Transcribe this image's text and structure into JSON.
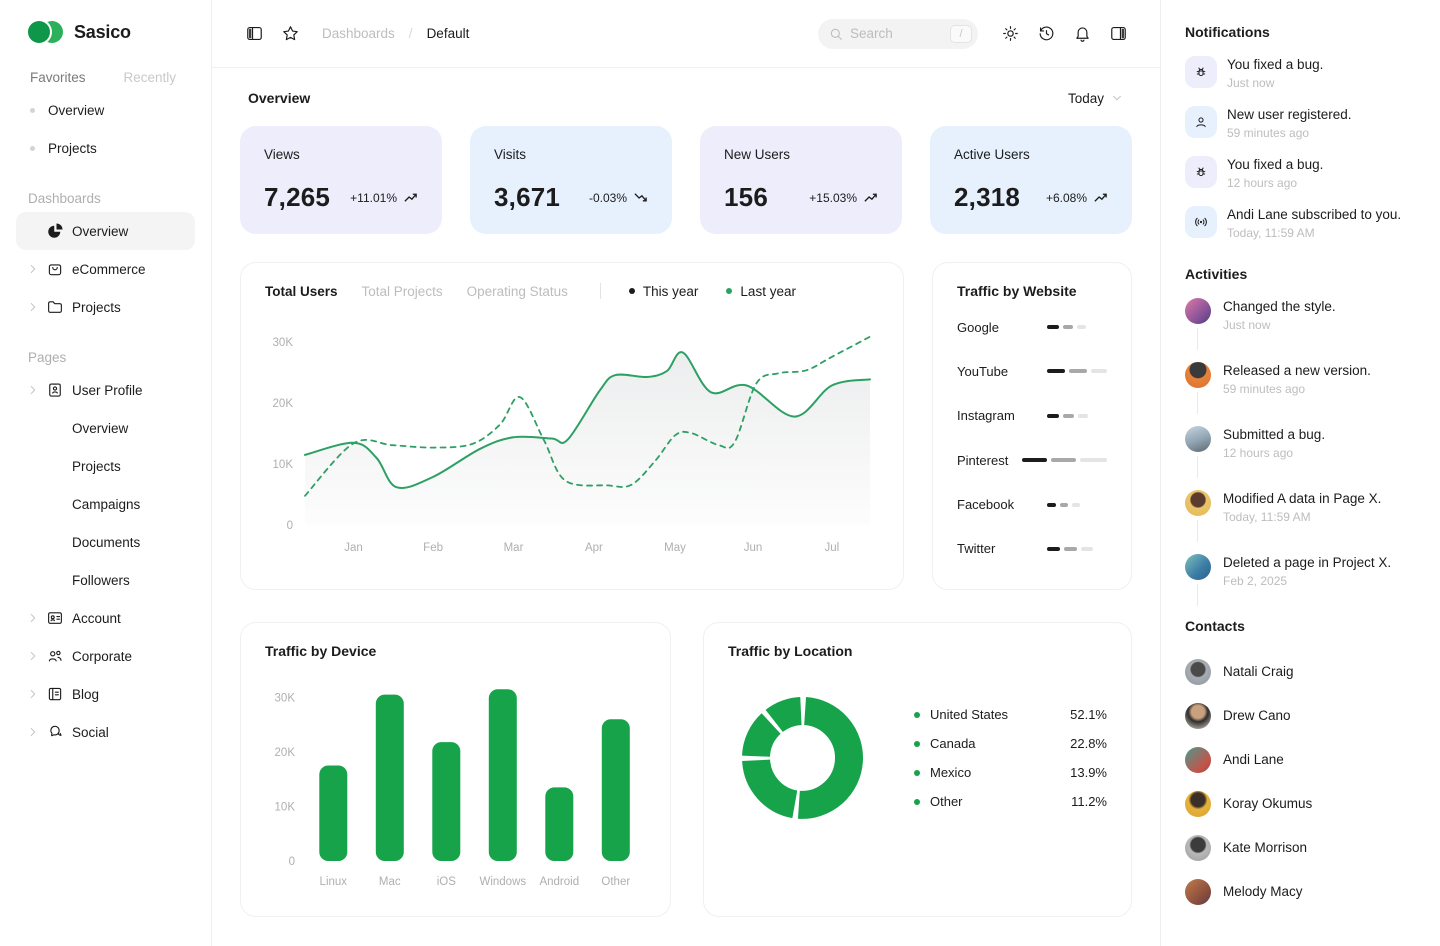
{
  "brand": {
    "name": "Sasico"
  },
  "sidebar": {
    "tabs": [
      {
        "label": "Favorites"
      },
      {
        "label": "Recently"
      }
    ],
    "favorites": [
      "Overview",
      "Projects"
    ],
    "dashboards": {
      "label": "Dashboards",
      "items": [
        {
          "label": "Overview",
          "icon": "pie-chart",
          "active": true
        },
        {
          "label": "eCommerce",
          "icon": "shopping-bag"
        },
        {
          "label": "Projects",
          "icon": "folder"
        }
      ]
    },
    "pages": {
      "label": "Pages",
      "user_profile": {
        "label": "User Profile",
        "icon": "id-badge",
        "children": [
          "Overview",
          "Projects",
          "Campaigns",
          "Documents",
          "Followers"
        ]
      },
      "items": [
        {
          "label": "Account",
          "icon": "id-card"
        },
        {
          "label": "Corporate",
          "icon": "users"
        },
        {
          "label": "Blog",
          "icon": "article"
        },
        {
          "label": "Social",
          "icon": "chat-bubbles"
        }
      ]
    }
  },
  "topbar": {
    "breadcrumb": [
      {
        "label": "Dashboards"
      },
      {
        "label": "Default"
      }
    ],
    "separator": "/",
    "search": {
      "placeholder": "Search",
      "shortcut": "/"
    }
  },
  "overview": {
    "title": "Overview",
    "range": "Today"
  },
  "stats": [
    {
      "label": "Views",
      "value": "7,265",
      "delta": "+11.01%",
      "trend": "up",
      "bg": "#EDEDFB"
    },
    {
      "label": "Visits",
      "value": "3,671",
      "delta": "-0.03%",
      "trend": "down",
      "bg": "#E6F1FD"
    },
    {
      "label": "New Users",
      "value": "156",
      "delta": "+15.03%",
      "trend": "up",
      "bg": "#EDEDFB"
    },
    {
      "label": "Active Users",
      "value": "2,318",
      "delta": "+6.08%",
      "trend": "up",
      "bg": "#E6F1FD"
    }
  ],
  "chart_data": [
    {
      "type": "line",
      "title": "Total Users",
      "tabs": [
        "Total Users",
        "Total Projects",
        "Operating Status"
      ],
      "active_tab": "Total Users",
      "legend": [
        {
          "name": "This year",
          "color": "#1C1C1C"
        },
        {
          "name": "Last year",
          "color": "#2DA064"
        }
      ],
      "x_ticks": [
        "Jan",
        "Feb",
        "Mar",
        "Apr",
        "May",
        "Jun",
        "Jul"
      ],
      "x_tick_units": [
        0.61,
        1.61,
        2.62,
        3.63,
        4.65,
        5.63,
        6.62
      ],
      "x_range": [
        0,
        7.1
      ],
      "y_ticks": [
        "0",
        "10K",
        "20K",
        "30K"
      ],
      "y_tick_values": [
        0,
        10,
        20,
        30
      ],
      "ylim": [
        0,
        32.5
      ],
      "unit": "K",
      "grid": false,
      "legend_position": "top",
      "series": [
        {
          "name": "This year",
          "style": "solid",
          "color": "#2DA064",
          "fill": "gray-gradient",
          "points": [
            [
              0,
              11.5
            ],
            [
              0.61,
              13.5
            ],
            [
              0.9,
              11.0
            ],
            [
              1.15,
              6.2
            ],
            [
              1.61,
              7.9
            ],
            [
              2.2,
              12.5
            ],
            [
              2.62,
              14.4
            ],
            [
              3.1,
              14.2
            ],
            [
              3.3,
              14.0
            ],
            [
              3.7,
              22.0
            ],
            [
              3.9,
              24.6
            ],
            [
              4.3,
              24.3
            ],
            [
              4.55,
              25.3
            ],
            [
              4.75,
              28.3
            ],
            [
              5.1,
              21.8
            ],
            [
              5.55,
              22.9
            ],
            [
              6.15,
              17.8
            ],
            [
              6.62,
              22.9
            ],
            [
              7.1,
              23.9
            ]
          ]
        },
        {
          "name": "Last year",
          "style": "dashed",
          "color": "#2DA064",
          "points": [
            [
              0,
              4.8
            ],
            [
              0.61,
              13.4
            ],
            [
              1.1,
              13.1
            ],
            [
              1.61,
              12.7
            ],
            [
              2.1,
              13.3
            ],
            [
              2.45,
              16.5
            ],
            [
              2.7,
              21.0
            ],
            [
              3.0,
              14.0
            ],
            [
              3.27,
              7.3
            ],
            [
              3.8,
              6.5
            ],
            [
              4.1,
              6.6
            ],
            [
              4.4,
              10.5
            ],
            [
              4.65,
              14.7
            ],
            [
              4.85,
              15.1
            ],
            [
              5.2,
              13.1
            ],
            [
              5.4,
              13.6
            ],
            [
              5.67,
              23.2
            ],
            [
              5.95,
              24.9
            ],
            [
              6.3,
              25.4
            ],
            [
              6.62,
              27.6
            ],
            [
              7.1,
              30.9
            ]
          ]
        }
      ]
    },
    {
      "type": "bar",
      "title": "Traffic by Website",
      "orientation": "horizontal-segments",
      "segment_colors": [
        "#1C1C1C",
        "#A8A8A8",
        "#E4E4E4"
      ],
      "rows": [
        {
          "label": "Google",
          "segments": [
            12,
            10,
            9
          ]
        },
        {
          "label": "YouTube",
          "segments": [
            18,
            18,
            16
          ]
        },
        {
          "label": "Instagram",
          "segments": [
            12,
            11,
            10
          ]
        },
        {
          "label": "Pinterest",
          "segments": [
            25,
            25,
            27
          ]
        },
        {
          "label": "Facebook",
          "segments": [
            9,
            8,
            8
          ]
        },
        {
          "label": "Twitter",
          "segments": [
            13,
            13,
            12
          ]
        }
      ]
    },
    {
      "type": "bar",
      "title": "Traffic by Device",
      "categories": [
        "Linux",
        "Mac",
        "iOS",
        "Windows",
        "Android",
        "Other"
      ],
      "values": [
        17.5,
        30.5,
        21.8,
        31.5,
        13.5,
        26.0
      ],
      "unit": "K",
      "y_ticks": [
        "0",
        "10K",
        "20K",
        "30K"
      ],
      "y_tick_values": [
        0,
        10,
        20,
        30
      ],
      "ylim": [
        0,
        33
      ],
      "bar_color": "#16A34A"
    },
    {
      "type": "pie",
      "title": "Traffic by Location",
      "donut": true,
      "color": "#16A34A",
      "slices": [
        {
          "label": "United States",
          "value": 52.1,
          "pct": "52.1%"
        },
        {
          "label": "Canada",
          "value": 22.8,
          "pct": "22.8%"
        },
        {
          "label": "Mexico",
          "value": 13.9,
          "pct": "13.9%"
        },
        {
          "label": "Other",
          "value": 11.2,
          "pct": "11.2%"
        }
      ]
    }
  ],
  "notifications": {
    "title": "Notifications",
    "items": [
      {
        "icon": "bug",
        "tint": "purple",
        "title": "You fixed a bug.",
        "time": "Just now"
      },
      {
        "icon": "user",
        "tint": "blue",
        "title": "New user registered.",
        "time": "59 minutes ago"
      },
      {
        "icon": "bug",
        "tint": "purple",
        "title": "You fixed a bug.",
        "time": "12 hours ago"
      },
      {
        "icon": "broadcast",
        "tint": "blue",
        "title": "Andi Lane subscribed to you.",
        "time": "Today, 11:59 AM"
      }
    ]
  },
  "activities": {
    "title": "Activities",
    "items": [
      {
        "title": "Changed the style.",
        "time": "Just now"
      },
      {
        "title": "Released a new version.",
        "time": "59 minutes ago"
      },
      {
        "title": "Submitted a bug.",
        "time": "12 hours ago"
      },
      {
        "title": "Modified A data in Page X.",
        "time": "Today, 11:59 AM"
      },
      {
        "title": "Deleted a page in Project X.",
        "time": "Feb 2, 2025"
      }
    ]
  },
  "contacts": {
    "title": "Contacts",
    "names": [
      "Natali Craig",
      "Drew Cano",
      "Andi Lane",
      "Koray Okumus",
      "Kate Morrison",
      "Melody Macy"
    ]
  },
  "colors": {
    "accent_green": "#16A34A",
    "line_green": "#2DA064",
    "card_purple": "#EDEDFB",
    "card_blue": "#E6F1FD"
  }
}
